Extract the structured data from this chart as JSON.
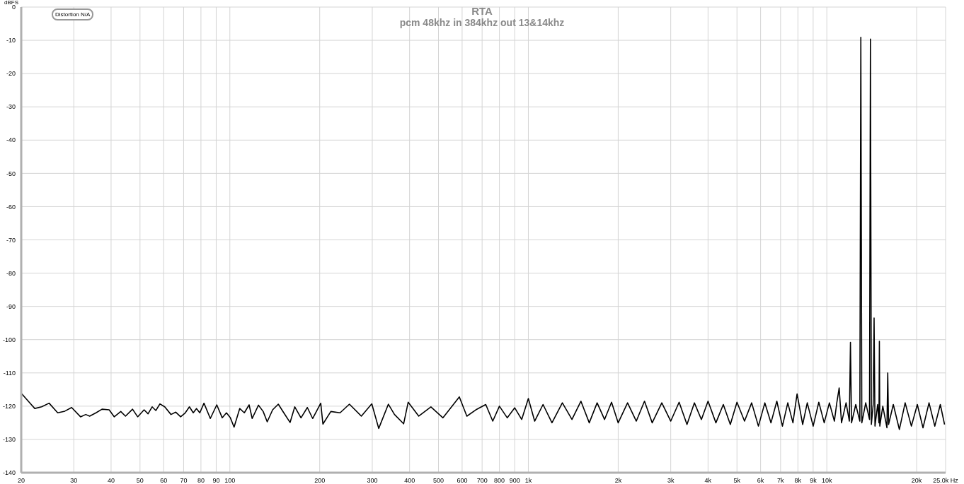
{
  "chart_data": {
    "type": "line",
    "title": "RTA",
    "subtitle": "pcm 48khz in 384khz out 13&14khz",
    "ylabel": "dBFS",
    "annotations": [
      "Distortion N/A"
    ],
    "xlim": [
      20,
      25000
    ],
    "ylim": [
      -140,
      0
    ],
    "log": "x",
    "grid": true,
    "legend": false,
    "marker": "none",
    "line_style": "solid",
    "xticks": [
      20,
      30,
      40,
      50,
      60,
      70,
      80,
      90,
      100,
      200,
      300,
      400,
      500,
      600,
      700,
      800,
      900,
      {
        "value": 1000,
        "label": "1k"
      },
      {
        "value": 2000,
        "label": "2k"
      },
      {
        "value": 3000,
        "label": "3k"
      },
      {
        "value": 4000,
        "label": "4k"
      },
      {
        "value": 5000,
        "label": "5k"
      },
      {
        "value": 6000,
        "label": "6k"
      },
      {
        "value": 7000,
        "label": "7k"
      },
      {
        "value": 8000,
        "label": "8k"
      },
      {
        "value": 9000,
        "label": "9k"
      },
      {
        "value": 10000,
        "label": "10k"
      },
      {
        "value": 20000,
        "label": "20k"
      },
      {
        "value": 25000,
        "label": "25.0k Hz"
      }
    ],
    "yticks": [
      0,
      -10,
      -20,
      -30,
      -40,
      -50,
      -60,
      -70,
      -80,
      -90,
      -100,
      -110,
      -120,
      -130,
      -140
    ],
    "x": [
      20,
      21.5,
      22.2,
      23.4,
      24.8,
      26.5,
      28,
      29.5,
      31.6,
      32.9,
      33.9,
      35.6,
      37.3,
      39.4,
      41,
      43.1,
      44.7,
      47.2,
      49.1,
      51.6,
      53.2,
      54.9,
      56.5,
      58.3,
      60.5,
      63.5,
      65.9,
      68.4,
      70.9,
      73.2,
      75.4,
      77.3,
      79.3,
      81.9,
      86,
      90.4,
      94.3,
      97.4,
      100.4,
      103.3,
      107.9,
      111.8,
      116,
      118.8,
      124.7,
      129.3,
      133.4,
      139.1,
      145.3,
      151.6,
      159.1,
      165,
      173.1,
      181.8,
      189.4,
      201.6,
      205,
      217.9,
      234,
      251.5,
      275.7,
      298.9,
      315.3,
      339.7,
      356.1,
      382.1,
      395.8,
      429.4,
      471.6,
      517.6,
      587.2,
      622.3,
      666.9,
      720,
      760,
      800,
      850,
      900,
      950,
      1000,
      1050,
      1120,
      1200,
      1300,
      1400,
      1500,
      1600,
      1700,
      1800,
      1900,
      2000,
      2150,
      2300,
      2450,
      2600,
      2800,
      3000,
      3200,
      3400,
      3600,
      3800,
      4000,
      4250,
      4500,
      4750,
      5000,
      5300,
      5600,
      5900,
      6200,
      6500,
      6800,
      7100,
      7400,
      7700,
      7950,
      8300,
      8600,
      9000,
      9400,
      9800,
      10200,
      10600,
      10800,
      11000,
      11200,
      11600,
      11900,
      12000,
      12100,
      12500,
      12900,
      13000,
      13100,
      13500,
      13900,
      14000,
      14100,
      14300,
      14400,
      14500,
      14800,
      14950,
      15000,
      15050,
      15400,
      15900,
      16000,
      16100,
      16700,
      17500,
      18300,
      19200,
      20100,
      21000,
      22000,
      23000,
      24000,
      24800
    ],
    "series": [
      {
        "color": "#000000",
        "values": [
          -116.1,
          -119.3,
          -120.7,
          -120.2,
          -119.1,
          -122,
          -121.5,
          -120.4,
          -123.2,
          -122.5,
          -123,
          -122,
          -120.9,
          -121.1,
          -123.2,
          -121.6,
          -123,
          -120.9,
          -123.2,
          -121.1,
          -122.3,
          -120.2,
          -121.3,
          -119.3,
          -120.2,
          -122.5,
          -121.8,
          -123.2,
          -122,
          -120.2,
          -122,
          -120.7,
          -122,
          -119.1,
          -123.7,
          -119.6,
          -123.5,
          -122,
          -123.5,
          -126.3,
          -120.7,
          -122,
          -119.6,
          -123.7,
          -119.7,
          -121.6,
          -124.7,
          -121.1,
          -119.4,
          -122,
          -124.9,
          -120.2,
          -123.5,
          -120.4,
          -123.7,
          -119.1,
          -125.4,
          -121.6,
          -122,
          -119.4,
          -123,
          -119.3,
          -126.7,
          -119.4,
          -122.5,
          -125.3,
          -118.8,
          -123,
          -120.2,
          -123.5,
          -117.2,
          -123,
          -121.1,
          -119.5,
          -124.5,
          -120,
          -123.5,
          -120.5,
          -124,
          -117.7,
          -124.5,
          -119.5,
          -125,
          -119,
          -124,
          -118.5,
          -125,
          -119,
          -124,
          -118.8,
          -125,
          -119,
          -124.5,
          -118.5,
          -125,
          -119,
          -124.5,
          -118.8,
          -125.5,
          -119,
          -124,
          -118.5,
          -125,
          -119.5,
          -125.5,
          -118.8,
          -124.5,
          -119,
          -126,
          -119,
          -125,
          -118.5,
          -126,
          -119,
          -125,
          -116.3,
          -125.5,
          -119,
          -126,
          -118.8,
          -125,
          -119,
          -124.5,
          -119,
          -114.5,
          -125,
          -119,
          -124.5,
          -100.8,
          -125,
          -119.5,
          -124.5,
          -9.1,
          -125,
          -119,
          -124,
          -9.6,
          -125.5,
          -119.5,
          -93.5,
          -126,
          -119.5,
          -125,
          -100.5,
          -126,
          -120,
          -126.5,
          -110,
          -125.5,
          -119.5,
          -127,
          -119,
          -126,
          -119.5,
          -126.5,
          -119,
          -126,
          -119.5,
          -125.5
        ]
      }
    ]
  }
}
